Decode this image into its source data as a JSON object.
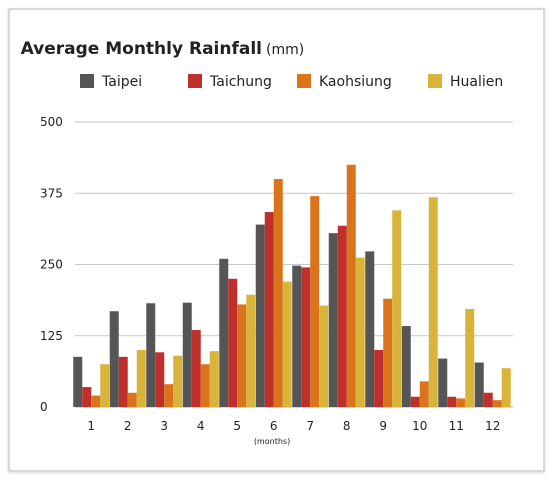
{
  "chart_data": {
    "type": "bar",
    "title": "Average Monthly Rainfall",
    "title_unit": "(mm)",
    "xlabel": "(months)",
    "ylabel": "",
    "ylim": [
      0,
      500
    ],
    "yticks": [
      "0",
      "125",
      "250",
      "375",
      "500"
    ],
    "grid": true,
    "legend_position": "top",
    "categories": [
      "1",
      "2",
      "3",
      "4",
      "5",
      "6",
      "7",
      "8",
      "9",
      "10",
      "11",
      "12"
    ],
    "series": [
      {
        "name": "Taipei",
        "color": "#555555",
        "values": [
          88,
          168,
          182,
          183,
          260,
          320,
          248,
          305,
          273,
          142,
          85,
          78
        ]
      },
      {
        "name": "Taichung",
        "color": "#c0302a",
        "values": [
          35,
          88,
          96,
          135,
          225,
          342,
          245,
          318,
          100,
          18,
          18,
          25
        ]
      },
      {
        "name": "Kaohsiung",
        "color": "#d9741d",
        "values": [
          20,
          25,
          40,
          75,
          180,
          400,
          370,
          425,
          190,
          45,
          15,
          12
        ]
      },
      {
        "name": "Hualien",
        "color": "#d9b43a",
        "values": [
          75,
          100,
          90,
          98,
          197,
          220,
          178,
          262,
          345,
          368,
          172,
          68
        ]
      }
    ]
  }
}
